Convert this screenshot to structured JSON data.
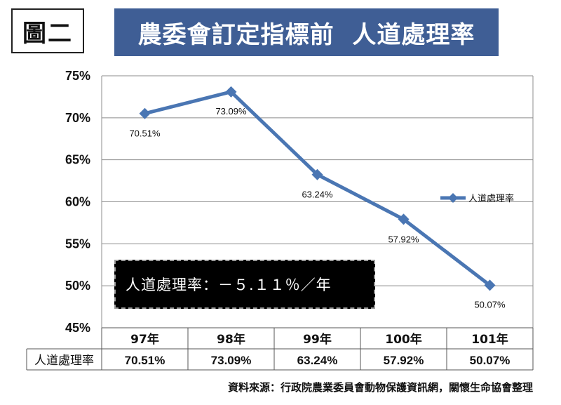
{
  "figure_label": "圖二",
  "banner_title": "農委會訂定指標前  人道處理率",
  "annotation": "人道處理率：－５.１１％／年",
  "source_note": "資料來源：行政院農業委員會動物保護資訊網，關懷生命協會整理",
  "colors": {
    "banner": "#3f5e95",
    "series": "#4a76b3"
  },
  "chart_data": {
    "type": "line",
    "categories": [
      "97年",
      "98年",
      "99年",
      "100年",
      "101年"
    ],
    "series": [
      {
        "name": "人道處理率",
        "values": [
          70.51,
          73.09,
          63.24,
          57.92,
          50.07
        ],
        "data_labels": [
          "70.51%",
          "73.09%",
          "63.24%",
          "57.92%",
          "50.07%"
        ]
      }
    ],
    "y_ticks": [
      "75%",
      "70%",
      "65%",
      "60%",
      "55%",
      "50%",
      "45%"
    ],
    "ylim": [
      45,
      75
    ],
    "grid": true,
    "legend": "right",
    "data_table": {
      "row_header": "人道處理率",
      "values": [
        "70.51%",
        "73.09%",
        "63.24%",
        "57.92%",
        "50.07%"
      ]
    }
  }
}
